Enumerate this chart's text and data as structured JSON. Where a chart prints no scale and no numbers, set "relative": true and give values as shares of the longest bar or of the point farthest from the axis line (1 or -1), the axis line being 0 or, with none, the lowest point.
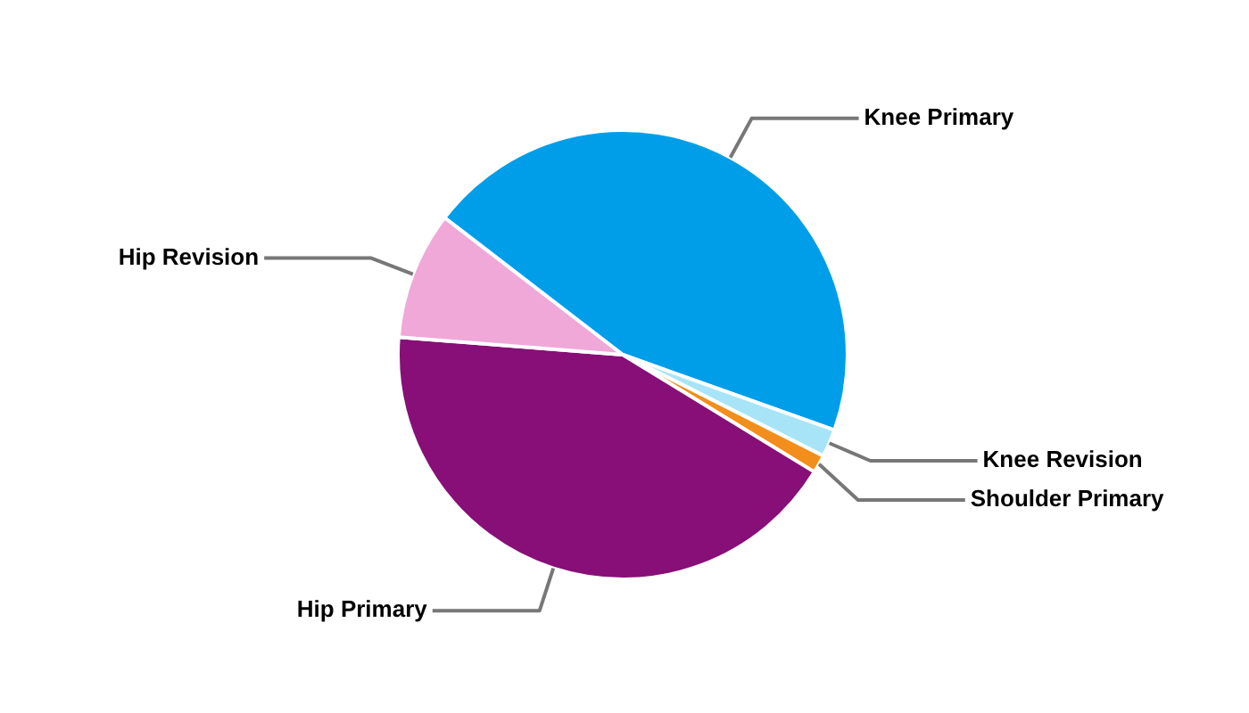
{
  "chart_data": {
    "type": "pie",
    "relative": true,
    "categories": [
      "Knee Primary",
      "Knee Revision",
      "Shoulder Primary",
      "Hip Primary",
      "Hip Revision"
    ],
    "values": [
      45,
      2,
      1.3,
      42.5,
      9.2
    ],
    "colors": [
      "#009ee9",
      "#a8e4f8",
      "#f28e1c",
      "#870f77",
      "#f0a8d8"
    ],
    "legend": false
  }
}
